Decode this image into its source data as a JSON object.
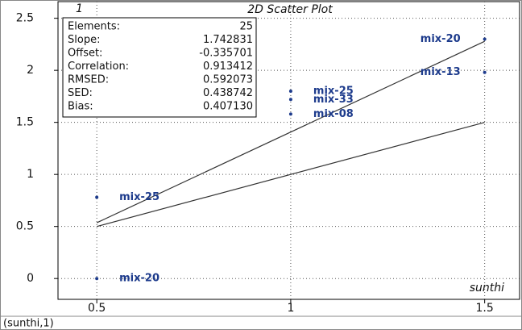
{
  "chart_data": {
    "type": "scatter",
    "title": "2D Scatter Plot",
    "plot_number": "1",
    "x_label": "sunthi",
    "x": [
      0.5,
      0.5,
      1.0,
      1.0,
      1.0,
      1.5,
      1.5
    ],
    "values": [
      0.78,
      0,
      1.8,
      1.72,
      1.58,
      2.3,
      1.98
    ],
    "point_labels": [
      "mix-25",
      "mix-20",
      "mix-25",
      "mix-33",
      "mix-08",
      "mix-20",
      "mix-13"
    ],
    "color": "#1d3b8c",
    "xlim": [
      0.4,
      1.59
    ],
    "ylim": [
      -0.2,
      2.66
    ],
    "xticks": [
      0.5,
      1.0,
      1.5
    ],
    "yticks": [
      0,
      0.5,
      1.0,
      1.5,
      2.0,
      2.5
    ],
    "grid": true,
    "stats": [
      [
        "Elements:",
        "25"
      ],
      [
        "Slope:",
        "1.742831"
      ],
      [
        "Offset:",
        "-0.335701"
      ],
      [
        "Correlation:",
        "0.913412"
      ],
      [
        "RMSED:",
        "0.592073"
      ],
      [
        "SED:",
        "0.438742"
      ],
      [
        "Bias:",
        "0.407130"
      ]
    ]
  },
  "status_bar": "(sunthi,1)"
}
